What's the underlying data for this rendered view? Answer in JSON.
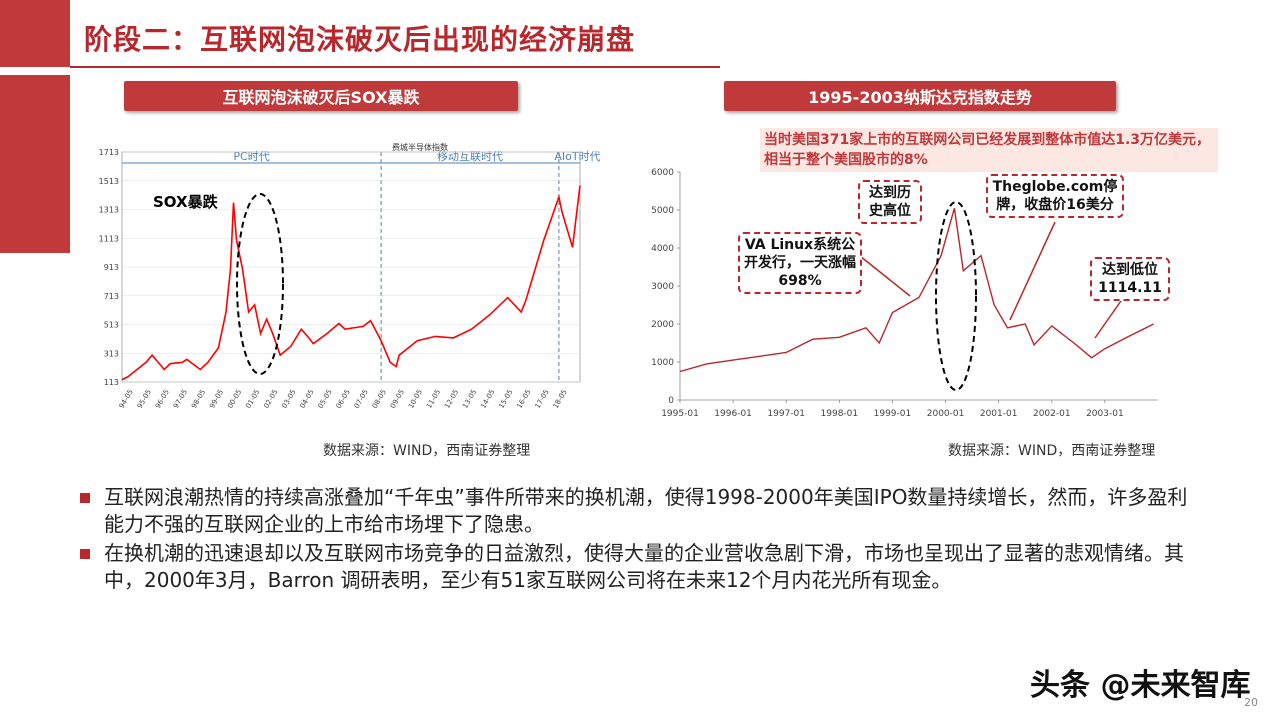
{
  "title": "阶段二：互联网泡沫破灭后出现的经济崩盘",
  "left_panel": {
    "header": "互联网泡沫破灭后SOX暴跌",
    "source": "数据来源：WIND，西南证券整理",
    "chart_data": {
      "type": "line",
      "title": "费城半导体指数",
      "ylim": [
        113,
        1713
      ],
      "yticks": [
        "1713",
        "1513",
        "1313",
        "1113",
        "913",
        "713",
        "513",
        "313",
        "113"
      ],
      "xticks": [
        "94-05",
        "95-05",
        "96-05",
        "97-05",
        "98-05",
        "99-05",
        "00-05",
        "01-05",
        "02-05",
        "03-05",
        "04-05",
        "05-05",
        "06-05",
        "07-05",
        "08-05",
        "09-05",
        "10-05",
        "11-05",
        "12-05",
        "13-05",
        "14-05",
        "15-05",
        "16-05",
        "17-05",
        "18-05"
      ],
      "eras": [
        "PC时代",
        "移动互联时代",
        "AIoT时代"
      ],
      "annotation": "SOX暴跌",
      "series": [
        {
          "color": "#ff0000",
          "x": [
            "94-01",
            "94-05",
            "95-05",
            "95-09",
            "96-05",
            "96-09",
            "97-05",
            "97-08",
            "98-05",
            "98-10",
            "99-05",
            "99-10",
            "00-01",
            "00-03",
            "00-05",
            "00-09",
            "01-01",
            "01-05",
            "01-09",
            "02-01",
            "02-05",
            "02-10",
            "03-05",
            "03-12",
            "04-05",
            "04-08",
            "05-05",
            "06-01",
            "06-05",
            "07-05",
            "07-10",
            "08-05",
            "08-11",
            "09-03",
            "09-05",
            "10-05",
            "11-05",
            "12-05",
            "13-05",
            "14-05",
            "15-05",
            "16-02",
            "16-05",
            "17-05",
            "18-03",
            "18-05",
            "18-12",
            "19-05"
          ],
          "values": [
            130,
            150,
            250,
            300,
            200,
            240,
            250,
            270,
            200,
            250,
            350,
            600,
            900,
            1360,
            1100,
            900,
            600,
            650,
            450,
            550,
            450,
            300,
            360,
            480,
            420,
            380,
            450,
            520,
            480,
            500,
            540,
            400,
            250,
            220,
            300,
            400,
            430,
            420,
            480,
            580,
            700,
            600,
            680,
            1100,
            1400,
            1300,
            1050,
            1480
          ]
        }
      ]
    }
  },
  "right_panel": {
    "header": "1995-2003纳斯达克指数走势",
    "source": "数据来源：WIND，西南证券整理",
    "note": "当时美国371家上市的互联网公司已经发展到整体市值达1.3万亿美元，相当于整个美国股市的8%",
    "annotations": {
      "va_linux": "VA Linux系统公开发行，一天涨幅698%",
      "peak": "达到历史高位",
      "theglobe": "Theglobe.com停牌，收盘价16美分",
      "low": "达到低位1114.11"
    },
    "chart_data": {
      "type": "line",
      "ylim": [
        0,
        6000
      ],
      "yticks": [
        "6000",
        "5000",
        "4000",
        "3000",
        "2000",
        "1000",
        "0"
      ],
      "xticks": [
        "1995-01",
        "1996-01",
        "1997-01",
        "1998-01",
        "1999-01",
        "2000-01",
        "2001-01",
        "2002-01",
        "2003-01"
      ],
      "series": [
        {
          "color": "#b8272c",
          "x": [
            "1995-01",
            "1995-07",
            "1996-01",
            "1996-07",
            "1997-01",
            "1997-07",
            "1998-01",
            "1998-07",
            "1998-10",
            "1999-01",
            "1999-07",
            "1999-12",
            "2000-03",
            "2000-05",
            "2000-09",
            "2000-12",
            "2001-03",
            "2001-07",
            "2001-09",
            "2002-01",
            "2002-06",
            "2002-10",
            "2003-01",
            "2003-06",
            "2003-12"
          ],
          "values": [
            750,
            950,
            1050,
            1150,
            1250,
            1600,
            1650,
            1900,
            1500,
            2300,
            2700,
            3800,
            5048,
            3400,
            3800,
            2500,
            1900,
            2000,
            1450,
            1950,
            1500,
            1114,
            1350,
            1650,
            2000
          ]
        }
      ]
    }
  },
  "bullets": [
    "互联网浪潮热情的持续高涨叠加“千年虫”事件所带来的换机潮，使得1998-2000年美国IPO数量持续增长，然而，许多盈利能力不强的互联网企业的上市给市场埋下了隐患。",
    "在换机潮的迅速退却以及互联网市场竞争的日益激烈，使得大量的企业营收急剧下滑，市场也呈现出了显著的悲观情绪。其中，2000年3月，Barron 调研表明，至少有51家互联网公司将在未来12个月内花光所有现金。"
  ],
  "watermark": "头条 @未来智库",
  "page_number": "20"
}
